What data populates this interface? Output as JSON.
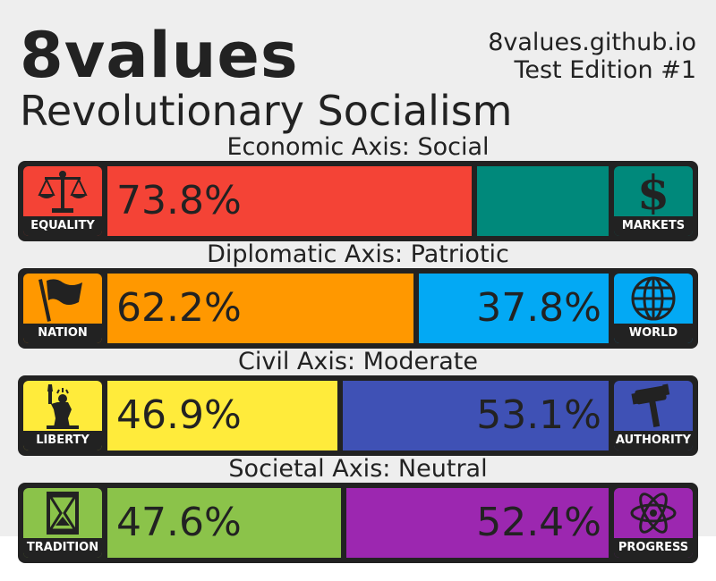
{
  "header": {
    "brand": "8values",
    "site": "8values.github.io",
    "edition": "Test Edition #1",
    "ideology": "Revolutionary Socialism"
  },
  "axes": [
    {
      "label": "Economic Axis: Social",
      "left": {
        "name": "EQUALITY",
        "icon": "scales-icon",
        "color": "#f44336",
        "value": 73.8,
        "text": "73.8%"
      },
      "right": {
        "name": "MARKETS",
        "icon": "dollar-icon",
        "color": "#00897b",
        "value": 26.2,
        "text": ""
      }
    },
    {
      "label": "Diplomatic Axis: Patriotic",
      "left": {
        "name": "NATION",
        "icon": "flag-icon",
        "color": "#ff9800",
        "value": 62.2,
        "text": "62.2%"
      },
      "right": {
        "name": "WORLD",
        "icon": "globe-icon",
        "color": "#03a9f4",
        "value": 37.8,
        "text": "37.8%"
      }
    },
    {
      "label": "Civil Axis: Moderate",
      "left": {
        "name": "LIBERTY",
        "icon": "statue-of-liberty-icon",
        "color": "#ffeb3b",
        "value": 46.9,
        "text": "46.9%"
      },
      "right": {
        "name": "AUTHORITY",
        "icon": "gavel-icon",
        "color": "#3f51b5",
        "value": 53.1,
        "text": "53.1%"
      }
    },
    {
      "label": "Societal Axis: Neutral",
      "left": {
        "name": "TRADITION",
        "icon": "hourglass-icon",
        "color": "#8bc34a",
        "value": 47.6,
        "text": "47.6%"
      },
      "right": {
        "name": "PROGRESS",
        "icon": "atom-icon",
        "color": "#9c27b0",
        "value": 52.4,
        "text": "52.4%"
      }
    }
  ],
  "chart_data": {
    "type": "bar",
    "orientation": "horizontal-stacked",
    "categories": [
      "Economic Axis: Social",
      "Diplomatic Axis: Patriotic",
      "Civil Axis: Moderate",
      "Societal Axis: Neutral"
    ],
    "series": [
      {
        "name": "EQUALITY / NATION / LIBERTY / TRADITION",
        "values": [
          73.8,
          62.2,
          46.9,
          47.6
        ]
      },
      {
        "name": "MARKETS / WORLD / AUTHORITY / PROGRESS",
        "values": [
          26.2,
          37.8,
          53.1,
          52.4
        ]
      }
    ],
    "title": "Revolutionary Socialism",
    "xlim": [
      0,
      100
    ]
  }
}
